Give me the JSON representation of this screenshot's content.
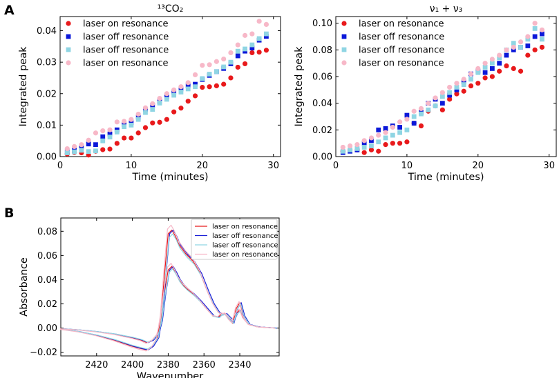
{
  "panel_labels": {
    "a": "A",
    "b": "B"
  },
  "chart_data": [
    {
      "type": "scatter",
      "panel": "A-left",
      "title": "¹³CO₂",
      "xlabel": "Time (minutes)",
      "ylabel": "Integrated peak",
      "xlim": [
        0,
        31
      ],
      "ylim": [
        0,
        0.0445
      ],
      "xticks": [
        0,
        10,
        20,
        30
      ],
      "yticks": [
        0.0,
        0.01,
        0.02,
        0.03,
        0.04
      ],
      "ytick_labels": [
        "0.00",
        "0.01",
        "0.02",
        "0.03",
        "0.04"
      ],
      "legend_position": "top-left",
      "series": [
        {
          "name": "laser on resonance",
          "marker": "circle",
          "color": "#e8191b",
          "x": [
            1,
            2,
            3,
            4,
            5,
            6,
            7,
            8,
            9,
            10,
            11,
            12,
            13,
            14,
            15,
            16,
            17,
            18,
            19,
            20,
            21,
            22,
            23,
            24,
            25,
            26,
            27,
            28,
            29
          ],
          "y": [
            0.0008,
            0.0013,
            0.0012,
            0.0005,
            0.0017,
            0.0022,
            0.0024,
            0.0042,
            0.0059,
            0.0059,
            0.0075,
            0.0092,
            0.0107,
            0.0109,
            0.0118,
            0.0142,
            0.0154,
            0.0176,
            0.0193,
            0.022,
            0.0222,
            0.0225,
            0.023,
            0.025,
            0.0284,
            0.0295,
            0.033,
            0.0332,
            0.0338
          ]
        },
        {
          "name": "laser off resonance",
          "marker": "square",
          "color": "#0b18d9",
          "x": [
            1,
            2,
            3,
            4,
            5,
            6,
            7,
            8,
            9,
            10,
            11,
            12,
            13,
            14,
            15,
            16,
            17,
            18,
            19,
            20,
            21,
            22,
            23,
            24,
            25,
            26,
            27,
            28,
            29
          ],
          "y": [
            0.0015,
            0.002,
            0.003,
            0.004,
            0.0038,
            0.0063,
            0.0072,
            0.0085,
            0.0102,
            0.0108,
            0.0125,
            0.015,
            0.0163,
            0.0175,
            0.019,
            0.0205,
            0.0215,
            0.0225,
            0.023,
            0.0245,
            0.0258,
            0.027,
            0.028,
            0.0295,
            0.032,
            0.0335,
            0.0345,
            0.037,
            0.0382
          ]
        },
        {
          "name": "laser off resonance",
          "marker": "square",
          "color": "#8fd5e3",
          "x": [
            1,
            2,
            3,
            4,
            5,
            6,
            7,
            8,
            9,
            10,
            11,
            12,
            13,
            14,
            15,
            16,
            17,
            18,
            19,
            20,
            21,
            22,
            23,
            24,
            25,
            26,
            27,
            28,
            29
          ],
          "y": [
            0.0012,
            0.0015,
            0.002,
            0.0016,
            0.0018,
            0.005,
            0.0062,
            0.0078,
            0.0095,
            0.01,
            0.0118,
            0.014,
            0.015,
            0.017,
            0.0182,
            0.0195,
            0.0205,
            0.0215,
            0.0222,
            0.0248,
            0.0262,
            0.027,
            0.0285,
            0.03,
            0.0335,
            0.0342,
            0.0355,
            0.0375,
            0.039
          ]
        },
        {
          "name": "laser on resonance",
          "marker": "circle",
          "color": "#f7b8c8",
          "x": [
            1,
            2,
            3,
            4,
            5,
            6,
            7,
            8,
            9,
            10,
            11,
            12,
            13,
            14,
            15,
            16,
            17,
            18,
            19,
            20,
            21,
            22,
            23,
            24,
            25,
            26,
            27,
            28,
            29
          ],
          "y": [
            0.0025,
            0.0032,
            0.0038,
            0.0052,
            0.0075,
            0.0082,
            0.0085,
            0.011,
            0.0112,
            0.0118,
            0.0135,
            0.0155,
            0.0168,
            0.0185,
            0.02,
            0.0212,
            0.0222,
            0.0235,
            0.026,
            0.029,
            0.0292,
            0.0302,
            0.031,
            0.033,
            0.0355,
            0.0385,
            0.039,
            0.043,
            0.042
          ]
        }
      ]
    },
    {
      "type": "scatter",
      "panel": "A-right",
      "title": "ν₁ + ν₃",
      "xlabel": "Time (minutes)",
      "ylabel": "Integrated peak",
      "xlim": [
        0,
        31
      ],
      "ylim": [
        0,
        0.105
      ],
      "xticks": [
        0,
        10,
        20,
        30
      ],
      "yticks": [
        0.0,
        0.02,
        0.04,
        0.06,
        0.08,
        0.1
      ],
      "ytick_labels": [
        "0.00",
        "0.02",
        "0.04",
        "0.06",
        "0.08",
        "0.10"
      ],
      "legend_position": "top-left",
      "series": [
        {
          "name": "laser on resonance",
          "marker": "circle",
          "color": "#e8191b",
          "x": [
            1,
            2,
            3,
            4,
            5,
            6,
            7,
            8,
            9,
            10,
            11,
            12,
            13,
            14,
            15,
            16,
            17,
            18,
            19,
            20,
            21,
            22,
            23,
            24,
            25,
            26,
            27,
            28,
            29
          ],
          "y": [
            0.004,
            0.005,
            0.005,
            0.003,
            0.005,
            0.004,
            0.009,
            0.01,
            0.01,
            0.011,
            0.025,
            0.023,
            0.034,
            0.038,
            0.035,
            0.043,
            0.047,
            0.049,
            0.053,
            0.055,
            0.059,
            0.06,
            0.064,
            0.068,
            0.066,
            0.064,
            0.076,
            0.08,
            0.082
          ]
        },
        {
          "name": "laser off resonance",
          "marker": "square",
          "color": "#0b18d9",
          "x": [
            1,
            2,
            3,
            4,
            5,
            6,
            7,
            8,
            9,
            10,
            11,
            12,
            13,
            14,
            15,
            16,
            17,
            18,
            19,
            20,
            21,
            22,
            23,
            24,
            25,
            26,
            27,
            28,
            29
          ],
          "y": [
            0.003,
            0.004,
            0.005,
            0.01,
            0.012,
            0.02,
            0.021,
            0.023,
            0.022,
            0.031,
            0.025,
            0.033,
            0.04,
            0.043,
            0.04,
            0.046,
            0.05,
            0.056,
            0.062,
            0.064,
            0.063,
            0.066,
            0.07,
            0.076,
            0.08,
            0.082,
            0.083,
            0.09,
            0.092
          ]
        },
        {
          "name": "laser off resonance",
          "marker": "square",
          "color": "#8fd5e3",
          "x": [
            1,
            2,
            3,
            4,
            5,
            6,
            7,
            8,
            9,
            10,
            11,
            12,
            13,
            14,
            15,
            16,
            17,
            18,
            19,
            20,
            21,
            22,
            23,
            24,
            25,
            26,
            27,
            28,
            29
          ],
          "y": [
            0.004,
            0.005,
            0.006,
            0.007,
            0.008,
            0.011,
            0.014,
            0.016,
            0.018,
            0.02,
            0.03,
            0.032,
            0.035,
            0.038,
            0.045,
            0.048,
            0.052,
            0.054,
            0.058,
            0.063,
            0.067,
            0.07,
            0.074,
            0.08,
            0.085,
            0.082,
            0.088,
            0.096,
            0.088
          ]
        },
        {
          "name": "laser on resonance",
          "marker": "circle",
          "color": "#f7b8c8",
          "x": [
            1,
            2,
            3,
            4,
            5,
            6,
            7,
            8,
            9,
            10,
            11,
            12,
            13,
            14,
            15,
            16,
            17,
            18,
            19,
            20,
            21,
            22,
            23,
            24,
            25,
            26,
            27,
            28,
            29
          ],
          "y": [
            0.007,
            0.008,
            0.009,
            0.012,
            0.014,
            0.016,
            0.018,
            0.022,
            0.026,
            0.028,
            0.034,
            0.036,
            0.04,
            0.044,
            0.048,
            0.052,
            0.055,
            0.058,
            0.062,
            0.066,
            0.07,
            0.073,
            0.076,
            0.08,
            0.082,
            0.086,
            0.09,
            0.1,
            0.095
          ]
        }
      ]
    },
    {
      "type": "line",
      "panel": "B",
      "title": "",
      "xlabel": "Wavenumber",
      "ylabel": "Absorbance",
      "xlim": [
        2440,
        2318
      ],
      "ylim": [
        -0.023,
        0.091
      ],
      "xticks": [
        2420,
        2400,
        2380,
        2360,
        2340
      ],
      "yticks": [
        -0.02,
        0.0,
        0.02,
        0.04,
        0.06,
        0.08
      ],
      "ytick_labels": [
        "−0.02",
        "0.00",
        "0.02",
        "0.04",
        "0.06",
        "0.08"
      ],
      "legend_position": "top-right",
      "series": [
        {
          "name": "laser on resonance",
          "color": "#e8191b",
          "scale": 1.0,
          "shift": 0.0
        },
        {
          "name": "laser off resonance",
          "color": "#1a1fd6",
          "scale": 1.0,
          "shift": -0.8
        },
        {
          "name": "laser off resonance",
          "color": "#8fd5e3",
          "scale": 0.96,
          "shift": -0.5
        },
        {
          "name": "laser on resonance",
          "color": "#f7b8c8",
          "scale": 1.05,
          "shift": 0.4
        }
      ],
      "profile_x": [
        2440,
        2430,
        2420,
        2410,
        2400,
        2395,
        2392,
        2389,
        2386,
        2384,
        2382,
        2380,
        2378,
        2376,
        2374,
        2372,
        2370,
        2366,
        2362,
        2358,
        2355,
        2352,
        2350,
        2348,
        2346,
        2344,
        2342,
        2340,
        2338,
        2335,
        2330,
        2320
      ],
      "profile_y_upper": [
        -0.001,
        -0.003,
        -0.006,
        -0.01,
        -0.015,
        -0.017,
        -0.018,
        -0.015,
        -0.008,
        0.01,
        0.045,
        0.078,
        0.081,
        0.076,
        0.069,
        0.065,
        0.061,
        0.055,
        0.045,
        0.03,
        0.02,
        0.013,
        0.011,
        0.012,
        0.009,
        0.006,
        0.012,
        0.015,
        0.008,
        0.003,
        0.001,
        0.0
      ],
      "profile_y_lower": [
        -0.0005,
        -0.0015,
        -0.003,
        -0.005,
        -0.008,
        -0.01,
        -0.012,
        -0.01,
        -0.005,
        0.006,
        0.03,
        0.048,
        0.051,
        0.046,
        0.04,
        0.036,
        0.033,
        0.028,
        0.022,
        0.015,
        0.01,
        0.009,
        0.012,
        0.011,
        0.007,
        0.004,
        0.016,
        0.021,
        0.01,
        0.003,
        0.001,
        0.0
      ]
    }
  ]
}
